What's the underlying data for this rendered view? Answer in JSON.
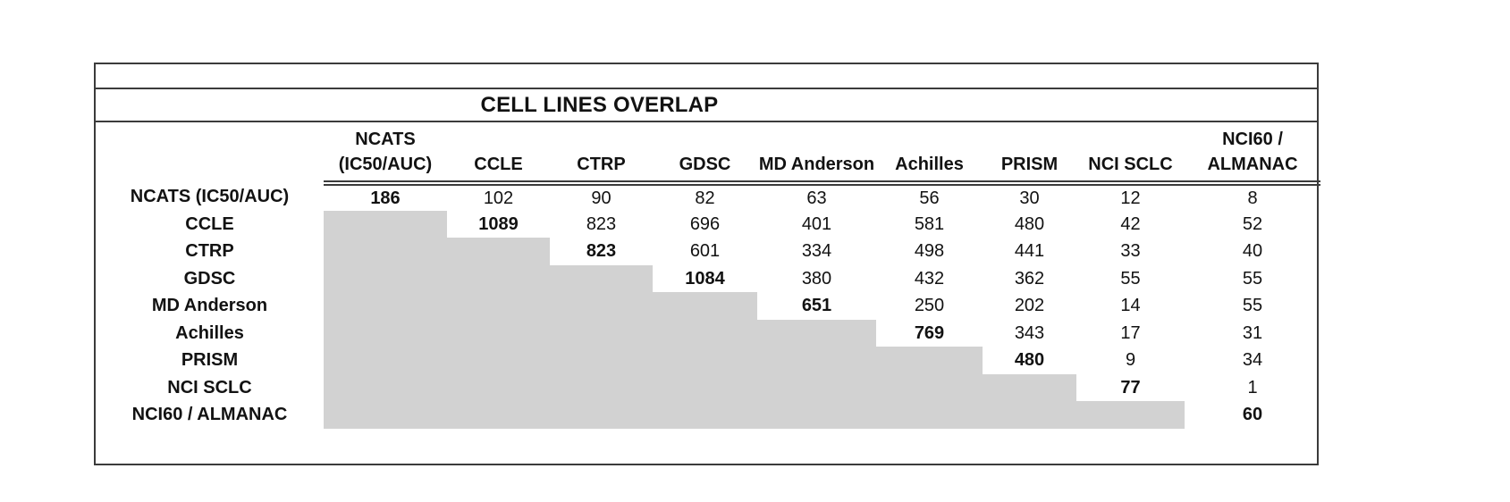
{
  "colors": {
    "shaded_cell": "#d2d2d2",
    "border": "#3b3b3b",
    "text": "#121212",
    "background": "#ffffff"
  },
  "chart_data": {
    "type": "table",
    "title": "CELL LINES OVERLAP",
    "columns": [
      {
        "name": "NCATS (IC50/AUC)",
        "lines": [
          "NCATS",
          "(IC50/AUC)"
        ]
      },
      {
        "name": "CCLE",
        "lines": [
          "CCLE"
        ]
      },
      {
        "name": "CTRP",
        "lines": [
          "CTRP"
        ]
      },
      {
        "name": "GDSC",
        "lines": [
          "GDSC"
        ]
      },
      {
        "name": "MD Anderson",
        "lines": [
          "MD Anderson"
        ]
      },
      {
        "name": "Achilles",
        "lines": [
          "Achilles"
        ]
      },
      {
        "name": "PRISM",
        "lines": [
          "PRISM"
        ]
      },
      {
        "name": "NCI SCLC",
        "lines": [
          "NCI SCLC"
        ]
      },
      {
        "name": "NCI60 / ALMANAC",
        "lines": [
          "NCI60 /",
          "ALMANAC"
        ]
      }
    ],
    "rows": [
      {
        "label": "NCATS (IC50/AUC)",
        "values": [
          186,
          102,
          90,
          82,
          63,
          56,
          30,
          12,
          8
        ]
      },
      {
        "label": "CCLE",
        "values": [
          null,
          1089,
          823,
          696,
          401,
          581,
          480,
          42,
          52
        ]
      },
      {
        "label": "CTRP",
        "values": [
          null,
          null,
          823,
          601,
          334,
          498,
          441,
          33,
          40
        ]
      },
      {
        "label": "GDSC",
        "values": [
          null,
          null,
          null,
          1084,
          380,
          432,
          362,
          55,
          55
        ]
      },
      {
        "label": "MD Anderson",
        "values": [
          null,
          null,
          null,
          null,
          651,
          250,
          202,
          14,
          55
        ]
      },
      {
        "label": "Achilles",
        "values": [
          null,
          null,
          null,
          null,
          null,
          769,
          343,
          17,
          31
        ]
      },
      {
        "label": "PRISM",
        "values": [
          null,
          null,
          null,
          null,
          null,
          null,
          480,
          9,
          34
        ]
      },
      {
        "label": "NCI SCLC",
        "values": [
          null,
          null,
          null,
          null,
          null,
          null,
          null,
          77,
          1
        ]
      },
      {
        "label": "NCI60 / ALMANAC",
        "values": [
          null,
          null,
          null,
          null,
          null,
          null,
          null,
          null,
          60
        ]
      }
    ],
    "layout_hints": {
      "diagonal_bold": true,
      "lower_triangle_shaded": true,
      "double_rule_under_headers": true
    }
  }
}
